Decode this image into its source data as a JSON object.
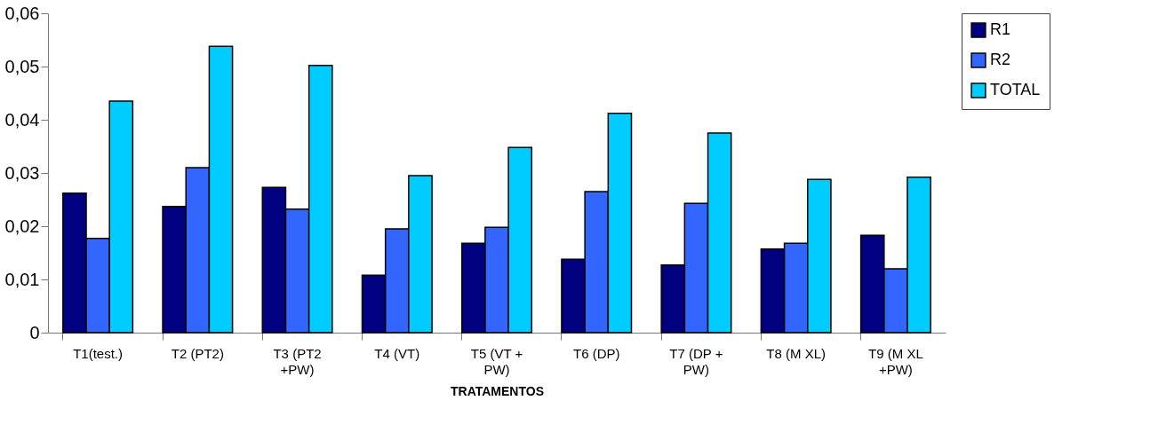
{
  "chart_data": {
    "type": "bar",
    "xlabel": "TRATAMENTOS",
    "categories": [
      "T1(test.)",
      "T2 (PT2)",
      "T3 (PT2 +PW)",
      "T4 (VT)",
      "T5 (VT + PW)",
      "T6 (DP)",
      "T7 (DP + PW)",
      "T8 (M XL)",
      "T9 (M XL +PW)"
    ],
    "series": [
      {
        "name": "R1",
        "color": "#000080",
        "values": [
          0.0262,
          0.0237,
          0.0273,
          0.0108,
          0.0168,
          0.0138,
          0.0127,
          0.0157,
          0.0183
        ]
      },
      {
        "name": "R2",
        "color": "#3366ff",
        "values": [
          0.0177,
          0.031,
          0.0232,
          0.0195,
          0.0198,
          0.0265,
          0.0243,
          0.0168,
          0.012
        ]
      },
      {
        "name": "TOTAL",
        "color": "#00ccff",
        "values": [
          0.0435,
          0.0538,
          0.0502,
          0.0295,
          0.0348,
          0.0412,
          0.0375,
          0.0288,
          0.0292
        ]
      }
    ],
    "ylim": [
      0,
      0.06
    ],
    "yticks": [
      0,
      {
        "value": 0.01,
        "label": "0,01"
      },
      {
        "value": 0.02,
        "label": "0,02"
      },
      {
        "value": 0.03,
        "label": "0,03"
      },
      {
        "value": 0.04,
        "label": "0,04"
      },
      {
        "value": 0.05,
        "label": "0,05"
      },
      {
        "value": 0.06,
        "label": "0,06"
      }
    ],
    "grid": false,
    "legend": "right"
  }
}
